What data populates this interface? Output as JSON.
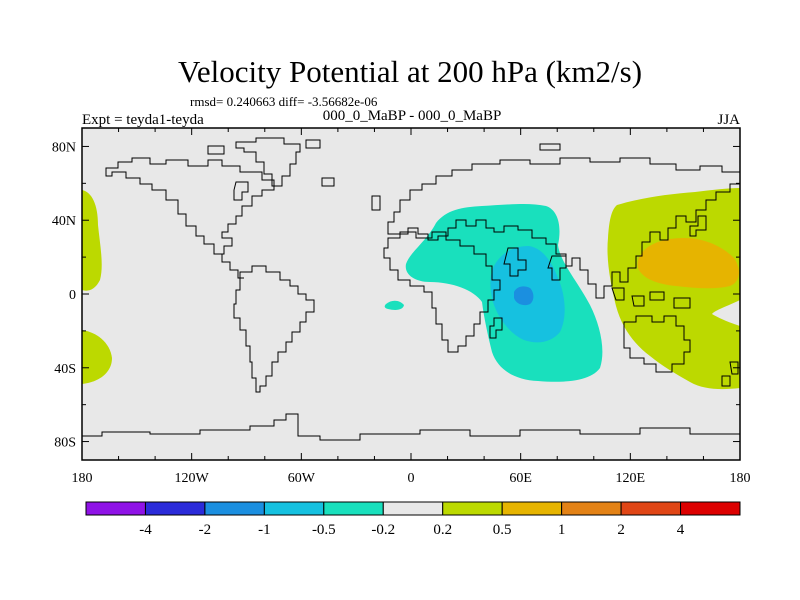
{
  "chart_data": {
    "type": "heatmap",
    "title": "Velocity Potential at 200 hPa (km2/s)",
    "stats": "rmsd= 0.240663 diff= -3.56682e-06",
    "left_label": "Expt = teyda1-teyda",
    "center_label": "000_0_MaBP - 000_0_MaBP",
    "season": "JJA",
    "xlim": [
      -180,
      180
    ],
    "ylim": [
      -90,
      90
    ],
    "x_ticks": [
      {
        "value": -180,
        "label": "180"
      },
      {
        "value": -120,
        "label": "120W"
      },
      {
        "value": -60,
        "label": "60W"
      },
      {
        "value": 0,
        "label": "0"
      },
      {
        "value": 60,
        "label": "60E"
      },
      {
        "value": 120,
        "label": "120E"
      },
      {
        "value": 180,
        "label": "180"
      }
    ],
    "y_ticks": [
      {
        "value": 80,
        "label": "80N"
      },
      {
        "value": 40,
        "label": "40N"
      },
      {
        "value": 0,
        "label": "0"
      },
      {
        "value": -40,
        "label": "40S"
      },
      {
        "value": -80,
        "label": "80S"
      }
    ],
    "colorbar": {
      "levels": [
        "-4",
        "-2",
        "-1",
        "-0.5",
        "-0.2",
        "0.2",
        "0.5",
        "1",
        "2",
        "4"
      ],
      "colors": [
        "#8f12e6",
        "#2b2bd9",
        "#1b8fe0",
        "#16c1e0",
        "#19e0bd",
        "#e8e8e8",
        "#bcd900",
        "#e6b400",
        "#e38216",
        "#e04616",
        "#dc0000"
      ]
    },
    "regions": [
      {
        "name": "pacific-west-north-positive",
        "level": "0.2 to 0.5",
        "lon_range": [
          -180,
          -170
        ],
        "lat_range": [
          8,
          52
        ]
      },
      {
        "name": "pacific-west-south-positive",
        "level": "0.2 to 0.5",
        "lon_range": [
          -180,
          -165
        ],
        "lat_range": [
          -46,
          -18
        ]
      },
      {
        "name": "africa-indian-negative",
        "level": "-0.5 to -0.2",
        "lon_range": [
          -3,
          95
        ],
        "lat_range": [
          -44,
          50
        ]
      },
      {
        "name": "atlantic-small-negative",
        "level": "-0.5 to -0.2",
        "lon_range": [
          -15,
          -3
        ],
        "lat_range": [
          -10,
          -4
        ]
      },
      {
        "name": "arabian-sea-negative",
        "level": "-1 to -0.5",
        "lon_range": [
          38,
          82
        ],
        "lat_range": [
          -26,
          20
        ]
      },
      {
        "name": "arabian-sea-core-negative",
        "level": "-2 to -1",
        "lon_range": [
          54,
          66
        ],
        "lat_range": [
          -2,
          6
        ]
      },
      {
        "name": "western-pacific-positive",
        "level": "0.2 to 0.5",
        "lon_range": [
          108,
          180
        ],
        "lat_range": [
          -50,
          60
        ]
      },
      {
        "name": "western-pacific-core-positive",
        "level": "0.5 to 1",
        "lon_range": [
          125,
          180
        ],
        "lat_range": [
          5,
          30
        ]
      }
    ]
  }
}
